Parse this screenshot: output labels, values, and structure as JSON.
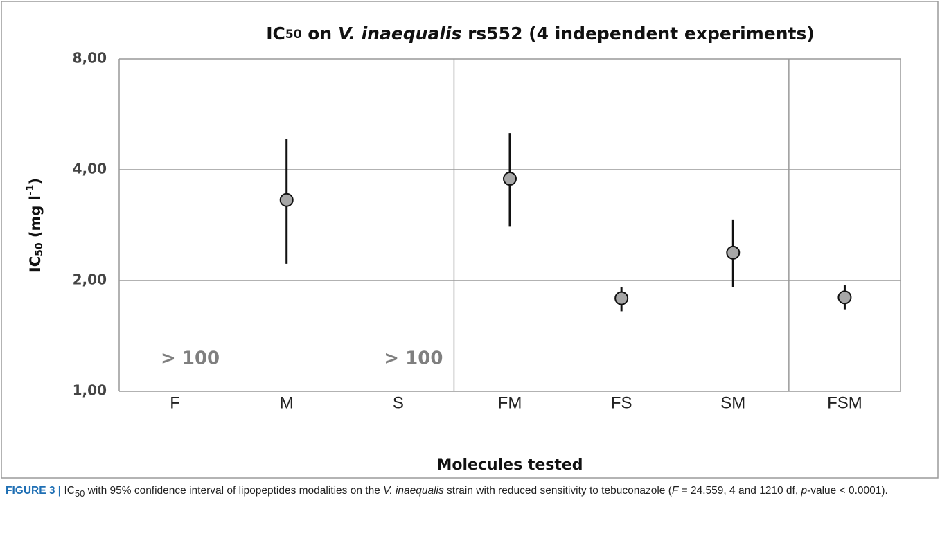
{
  "chart_data": {
    "type": "errorbar",
    "title": [
      "IC",
      "50",
      " on ",
      "V. inaequalis",
      " rs552 (4 independent experiments)"
    ],
    "y_label": [
      "IC",
      "50",
      " (mg l",
      "-1",
      ")"
    ],
    "x_label": "Molecules tested",
    "categories": [
      "F",
      "M",
      "S",
      "FM",
      "FS",
      "SM",
      "FSM"
    ],
    "values": [
      null,
      3.31,
      null,
      3.78,
      1.79,
      2.38,
      1.8
    ],
    "ci_low": [
      null,
      2.22,
      null,
      2.8,
      1.65,
      1.92,
      1.67
    ],
    "ci_high": [
      null,
      4.86,
      null,
      5.03,
      1.92,
      2.93,
      1.94
    ],
    "color": "#a6a6a6",
    "log_scale": true,
    "ylim": [
      1,
      8
    ],
    "yticks": [
      {
        "value": 1,
        "label": "1,00"
      },
      {
        "value": 2,
        "label": "2,00"
      },
      {
        "value": 4,
        "label": "4,00"
      },
      {
        "value": 8,
        "label": "8,00"
      }
    ],
    "group_separators_after": [
      "S",
      "SM"
    ],
    "annotations": [
      {
        "category": "F",
        "text": "> 100"
      },
      {
        "category": "S",
        "text": "> 100"
      }
    ],
    "grid": true
  },
  "caption": {
    "lead": "FIGURE 3 |",
    "parts": [
      " IC",
      "50",
      " with 95% confidence interval of lipopeptides modalities on the ",
      "V. inaequalis",
      " strain with reduced sensitivity to tebuconazole (",
      "F",
      " = 24.559, 4 and 1210 df, ",
      "p",
      "-value < 0.0001)."
    ]
  }
}
